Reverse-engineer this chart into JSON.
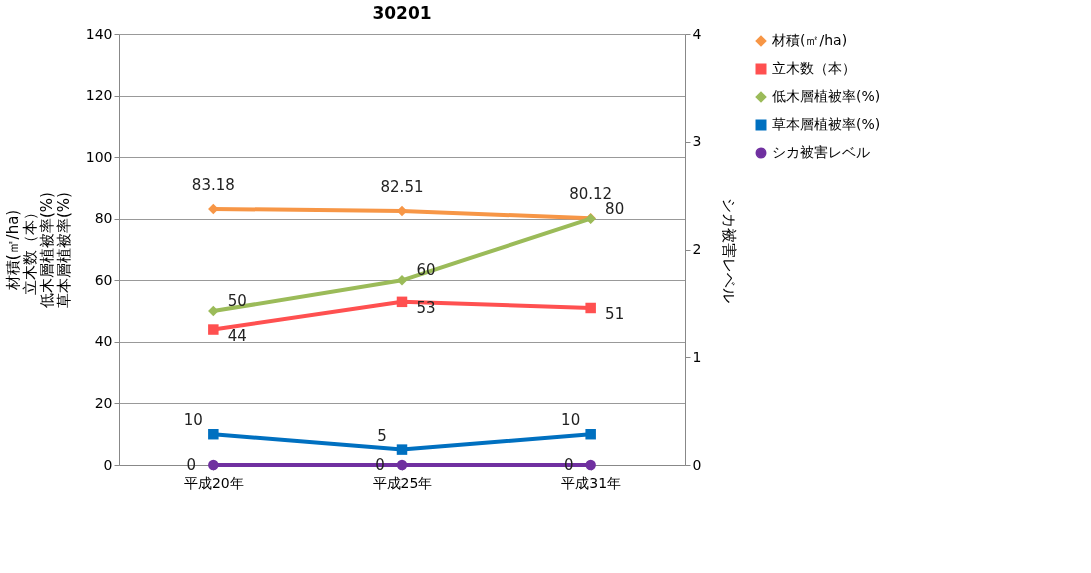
{
  "chart_data": {
    "type": "line",
    "title": "30201",
    "categories": [
      "平成20年",
      "平成25年",
      "平成31年"
    ],
    "ylabel": "材積(㎡/ha)立木数（本）低木層植被率(%)草本層植被率(%)",
    "y2label": "シカ被害レベル",
    "ylim": [
      0,
      140
    ],
    "yticks": [
      0,
      20,
      40,
      60,
      80,
      100,
      120,
      140
    ],
    "y2lim": [
      0,
      4
    ],
    "y2ticks": [
      0,
      1,
      2,
      3,
      4
    ],
    "grid": "y",
    "legend": "right",
    "data_labels": true,
    "series": [
      {
        "name": "材積(㎡/ha)",
        "color": "#f79646",
        "marker": "diamond",
        "values": [
          83.18,
          82.51,
          80.12
        ]
      },
      {
        "name": "立木数（本）",
        "color": "#ff5050",
        "marker": "square",
        "values": [
          44,
          53,
          51
        ]
      },
      {
        "name": "低木層植被率(%)",
        "color": "#9bbb59",
        "marker": "diamond",
        "values": [
          50,
          60,
          80
        ]
      },
      {
        "name": "草本層植被率(%)",
        "color": "#0070c0",
        "marker": "square",
        "values": [
          10,
          5,
          10
        ]
      },
      {
        "name": "シカ被害レベル",
        "color": "#7030a0",
        "marker": "circle",
        "axis": "y2",
        "values": [
          0,
          0,
          0
        ]
      }
    ]
  }
}
